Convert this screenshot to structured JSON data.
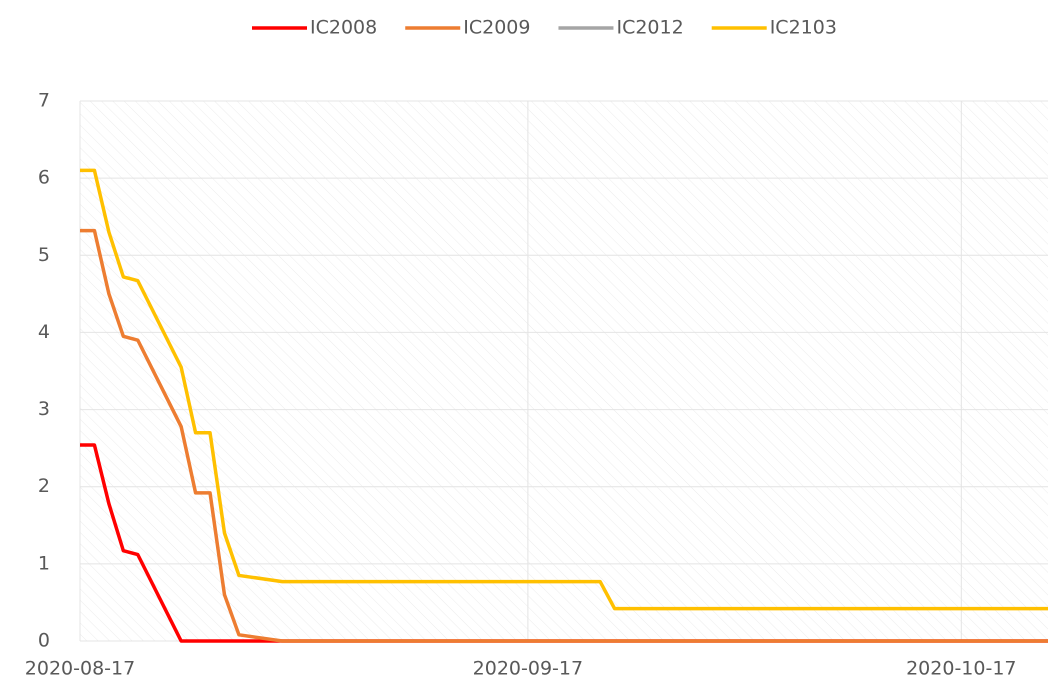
{
  "chart_data": {
    "type": "line",
    "x": [
      "2020-08-17",
      "2020-08-18",
      "2020-08-19",
      "2020-08-20",
      "2020-08-21",
      "2020-08-24",
      "2020-08-25",
      "2020-08-26",
      "2020-08-27",
      "2020-08-28",
      "2020-08-31",
      "2020-09-22",
      "2020-09-23",
      "2020-10-23"
    ],
    "series": [
      {
        "name": "IC2008",
        "color": "#ff0000",
        "values": [
          2.54,
          2.54,
          1.78,
          1.17,
          1.12,
          0,
          0,
          0,
          0,
          0,
          0,
          0,
          0,
          0
        ]
      },
      {
        "name": "IC2009",
        "color": "#ed7d31",
        "values": [
          5.32,
          5.32,
          4.5,
          3.95,
          3.9,
          2.78,
          1.92,
          1.92,
          0.6,
          0.08,
          0,
          0,
          0,
          0
        ]
      },
      {
        "name": "IC2012",
        "color": "#a5a5a5",
        "values": [
          null,
          null,
          null,
          null,
          null,
          null,
          null,
          null,
          null,
          null,
          null,
          null,
          null,
          null
        ]
      },
      {
        "name": "IC2103",
        "color": "#ffc000",
        "values": [
          6.1,
          6.1,
          5.3,
          4.72,
          4.67,
          3.55,
          2.7,
          2.7,
          1.4,
          0.85,
          0.77,
          0.77,
          0.42,
          0.42
        ]
      }
    ],
    "xlim": [
      "2020-08-17",
      "2020-10-23"
    ],
    "xticks": [
      "2020-08-17",
      "2020-09-17",
      "2020-10-17"
    ],
    "ylim": [
      0,
      7
    ],
    "yticks": [
      0,
      1,
      2,
      3,
      4,
      5,
      6,
      7
    ],
    "grid": true
  }
}
